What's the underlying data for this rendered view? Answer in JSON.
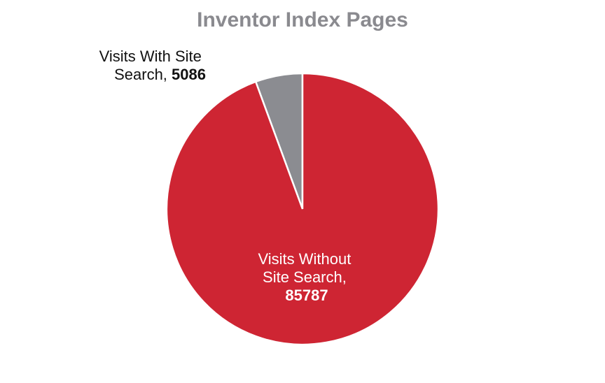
{
  "chart_data": {
    "type": "pie",
    "title": "Inventor Index Pages",
    "slices": [
      {
        "label_line1": "Visits With Site",
        "label_line2": "Search,",
        "value": 5086,
        "value_text": "5086",
        "color": "#8b8c91"
      },
      {
        "label_line1": "Visits Without",
        "label_line2": "Site Search,",
        "value": 85787,
        "value_text": "85787",
        "color": "#ce2533"
      }
    ],
    "legend": "none"
  }
}
